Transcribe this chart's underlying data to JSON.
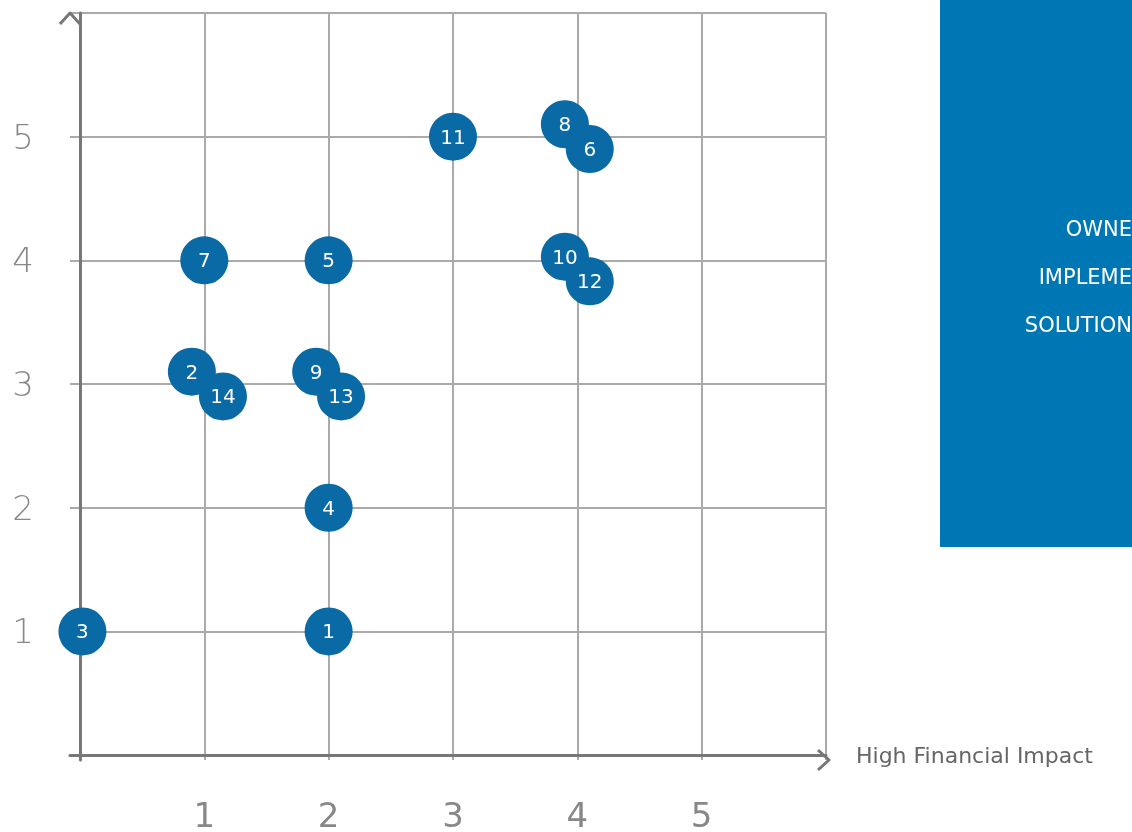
{
  "chart_data": {
    "type": "scatter",
    "xlabel": "High Financial Impact",
    "xlim": [
      -0.08,
      6
    ],
    "ylim": [
      -0.04,
      6
    ],
    "xticks": [
      1,
      2,
      3,
      4,
      5,
      {
        "value": 6,
        "label": null
      }
    ],
    "yticks": [
      1,
      2,
      3,
      4,
      5,
      {
        "value": 6,
        "label": null
      }
    ],
    "grid": true,
    "marker": "circle",
    "legend": false,
    "series": [
      {
        "name": "1",
        "color": "#0a6aa5",
        "x": [
          2
        ],
        "values": [
          1
        ]
      },
      {
        "name": "2",
        "color": "#0a6aa5",
        "x": [
          0.9
        ],
        "values": [
          3.1
        ]
      },
      {
        "name": "3",
        "color": "#0a6aa5",
        "x": [
          0.02
        ],
        "values": [
          1
        ]
      },
      {
        "name": "4",
        "color": "#0a6aa5",
        "x": [
          2
        ],
        "values": [
          2
        ]
      },
      {
        "name": "5",
        "color": "#0a6aa5",
        "x": [
          2
        ],
        "values": [
          4
        ]
      },
      {
        "name": "7",
        "color": "#0a6aa5",
        "x": [
          1
        ],
        "values": [
          4
        ]
      },
      {
        "name": "8",
        "color": "#0a6aa5",
        "x": [
          3.9
        ],
        "values": [
          5.1
        ]
      },
      {
        "name": "6",
        "color": "#0a6aa5",
        "x": [
          4.1
        ],
        "values": [
          4.9
        ]
      },
      {
        "name": "9",
        "color": "#0a6aa5",
        "x": [
          1.9
        ],
        "values": [
          3.1
        ]
      },
      {
        "name": "10",
        "color": "#0a6aa5",
        "x": [
          3.9
        ],
        "values": [
          4.03
        ]
      },
      {
        "name": "11",
        "color": "#0a6aa5",
        "x": [
          3
        ],
        "values": [
          5
        ]
      },
      {
        "name": "12",
        "color": "#0a6aa5",
        "x": [
          4.1
        ],
        "values": [
          3.83
        ]
      },
      {
        "name": "13",
        "color": "#0a6aa5",
        "x": [
          2.1
        ],
        "values": [
          2.9
        ]
      },
      {
        "name": "14",
        "color": "#0a6aa5",
        "x": [
          1.15
        ],
        "values": [
          2.9
        ]
      }
    ],
    "annotations": [
      "OWNE",
      "IMPLEME",
      "SOLUTION"
    ]
  }
}
